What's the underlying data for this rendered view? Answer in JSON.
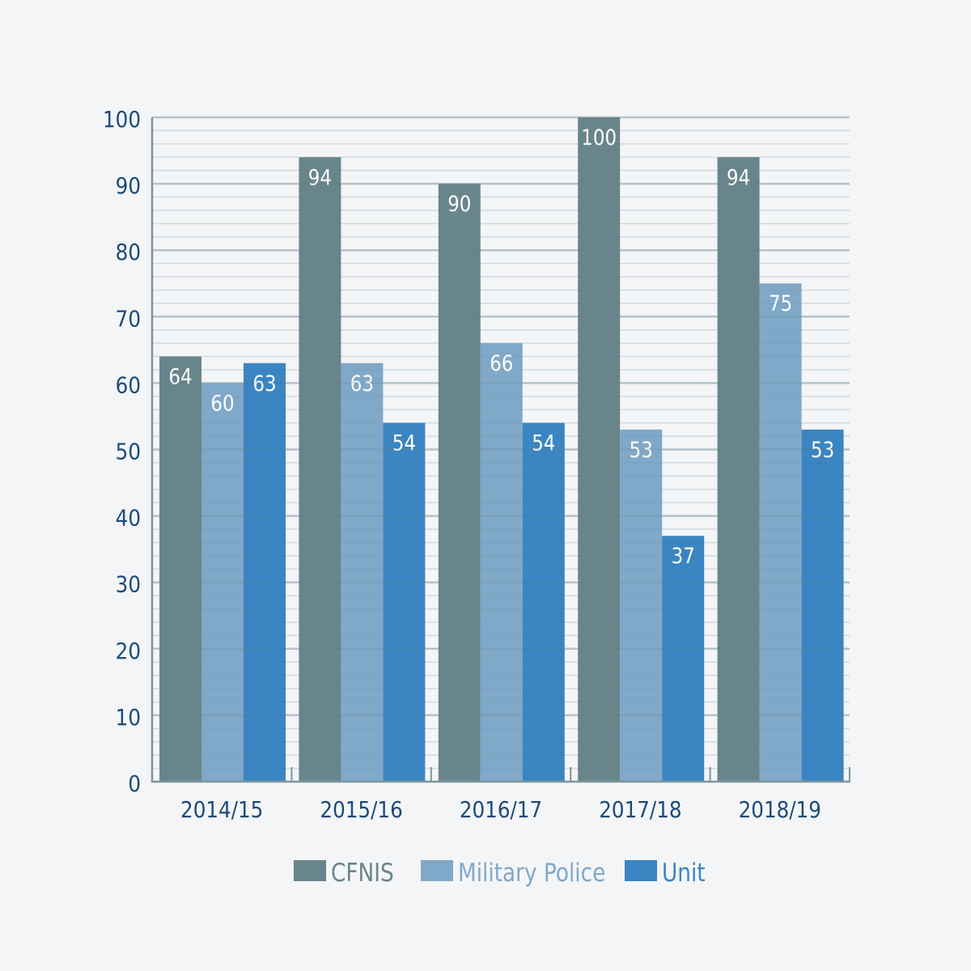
{
  "chart_data": {
    "type": "bar",
    "title": "",
    "xlabel": "",
    "ylabel": "",
    "categories": [
      "2014/15",
      "2015/16",
      "2016/17",
      "2017/18",
      "2018/19"
    ],
    "series": [
      {
        "name": "CFNIS",
        "color": "#69858c",
        "values": [
          64,
          94,
          90,
          100,
          94
        ]
      },
      {
        "name": "Military Police",
        "color": "#80a8c8",
        "values": [
          60,
          63,
          66,
          53,
          75
        ]
      },
      {
        "name": "Unit",
        "color": "#3a85c2",
        "values": [
          63,
          54,
          54,
          37,
          53
        ]
      }
    ],
    "ylim": [
      0,
      100
    ],
    "yticks": [
      0,
      10,
      20,
      30,
      40,
      50,
      60,
      70,
      80,
      90,
      100
    ],
    "minor_grid_step": 2,
    "grid": true,
    "data_labels": true,
    "legend_position": "bottom",
    "axis_text_color": "#1d4a7a",
    "background": "#f4f5f7"
  }
}
